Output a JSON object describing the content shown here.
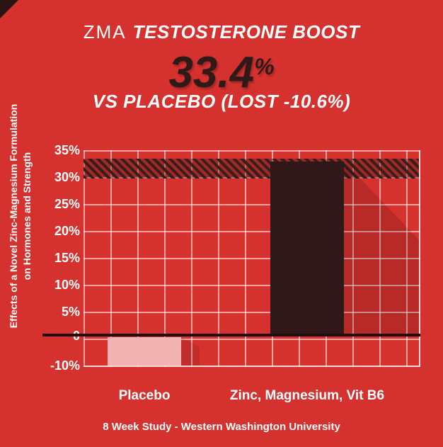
{
  "header": {
    "title_prefix": "ZMA",
    "title_main": "TESTOSTERONE BOOST",
    "big_value": "33.4",
    "big_unit": "%",
    "subtitle": "VS PLACEBO (LOST -10.6%)"
  },
  "ylabel": {
    "line1": "Effects of a Novel Zinc-Magnesium Formulation",
    "line2": "on Hormones and Strength"
  },
  "footer": "8 Week Study - Western Washington University",
  "chart_data": {
    "type": "bar",
    "title": "ZMA TESTOSTERONE BOOST 33.4% VS PLACEBO (LOST -10.6%)",
    "categories": [
      "Placebo",
      "Zinc, Magnesium, Vit B6"
    ],
    "values": [
      -10.6,
      33.4
    ],
    "ylabel": "Effects of a Novel Zinc-Magnesium Formulation on Hormones and Strength",
    "yticks": [
      "35%",
      "30%",
      "25%",
      "20%",
      "15%",
      "10%",
      "5%",
      "0",
      "-10%"
    ],
    "ylim": [
      -10.6,
      35
    ],
    "grid": true,
    "legend": false,
    "highlight_band_value": 33.4,
    "footnote": "8 Week Study - Western Washington University",
    "colors": {
      "background": "#d5322f",
      "bar_negative": "#f4b3b3",
      "bar_positive": "#2f1817",
      "grid_line": "#ffffff",
      "zero_axis": "#1d0f0f",
      "big_value_text": "#2e1a19"
    }
  }
}
